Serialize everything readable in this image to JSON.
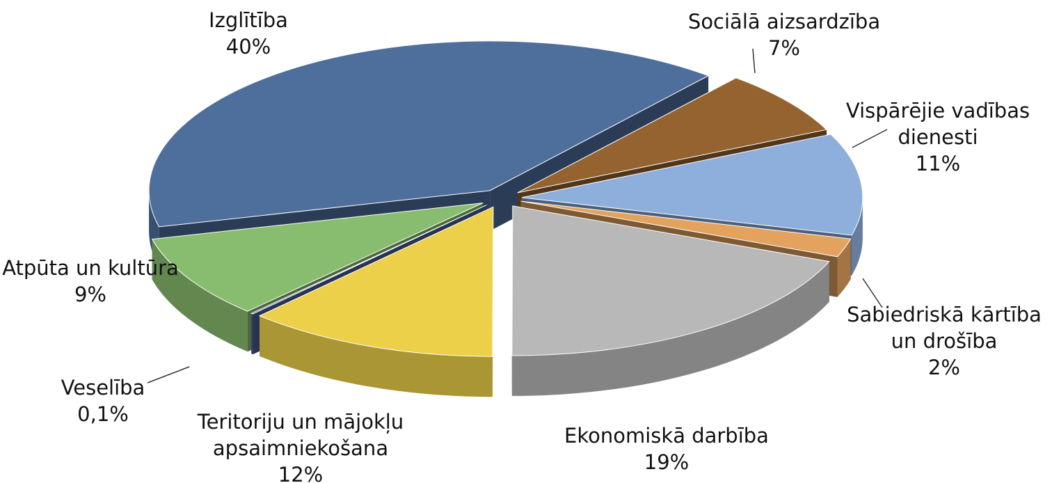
{
  "chart_data": {
    "type": "pie3d",
    "categories": [
      "Izglītība",
      "Sociālā aizsardzība",
      "Vispārējie vadības dienesti",
      "Sabiedriskā kārtība un drošība",
      "Ekonomiskā darbība",
      "Teritoriju un mājokļu apsaimniekošana",
      "Veselība",
      "Atpūta un kultūra"
    ],
    "values": [
      40,
      7,
      11,
      2,
      19,
      12,
      0.1,
      9
    ],
    "value_labels": [
      "40%",
      "7%",
      "11%",
      "2%",
      "19%",
      "12%",
      "0,1%",
      "9%"
    ],
    "colors": [
      "#4e6f9c",
      "#956330",
      "#8eaedb",
      "#e3a35e",
      "#b8b8b8",
      "#ecd04a",
      "#4a5c94",
      "#88bd6f"
    ]
  }
}
